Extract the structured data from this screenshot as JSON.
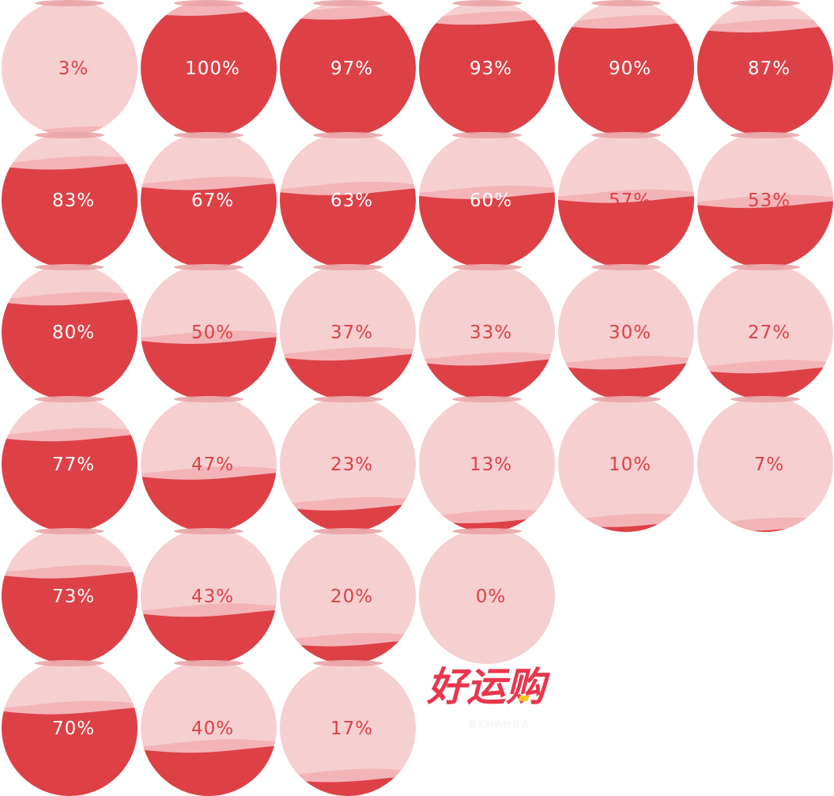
{
  "colors": {
    "liquid": "#dd4146",
    "glass": "#f6cfd1",
    "wave_back": "#f3b4b8",
    "rim": "#e9a1a5",
    "text_on_liquid": "#ffffff",
    "text_on_glass": "#dd4146",
    "logo_red": "#e8364d",
    "logo_yellow": "#ffc629"
  },
  "unit_symbol": "%",
  "grid": {
    "columns": [
      [
        3,
        83,
        80,
        77,
        73,
        70
      ],
      [
        100,
        67,
        50,
        47,
        43,
        40
      ],
      [
        97,
        63,
        37,
        23,
        20,
        17
      ],
      [
        93,
        60,
        33,
        13,
        0
      ],
      [
        90,
        57,
        30,
        10
      ],
      [
        87,
        53,
        27,
        7
      ]
    ]
  },
  "logo": {
    "title": "好运购",
    "subtitle": "慧买网购物首选",
    "accent_glyph": "运"
  }
}
